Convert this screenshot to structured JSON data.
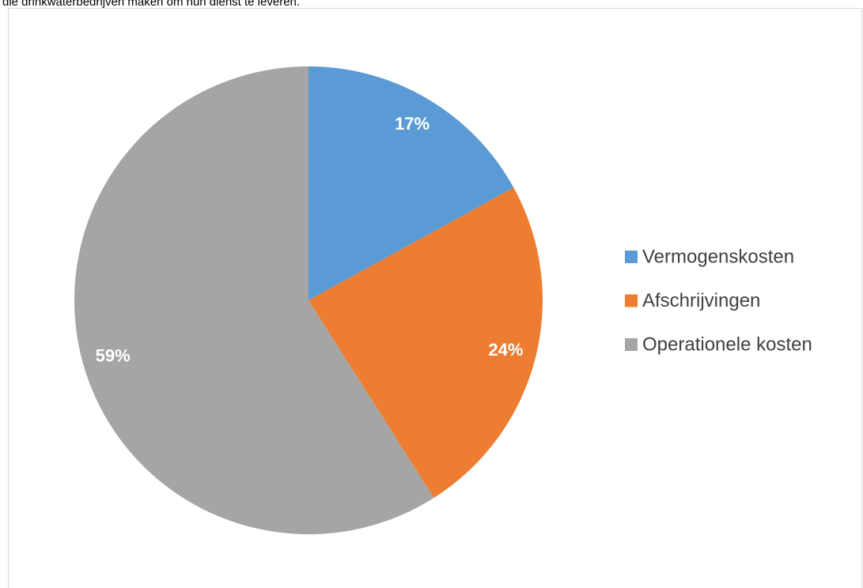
{
  "caption": "die drinkwaterbedrijven maken om hun dienst te leveren.",
  "chart_data": {
    "type": "pie",
    "categories": [
      "Vermogenskosten",
      "Afschrijvingen",
      "Operationele kosten"
    ],
    "values": [
      17,
      24,
      59
    ],
    "value_labels": [
      "17%",
      "24%",
      "59%"
    ],
    "colors": [
      "#5b9bd5",
      "#ed7d31",
      "#a5a5a5"
    ],
    "legend": "right"
  }
}
